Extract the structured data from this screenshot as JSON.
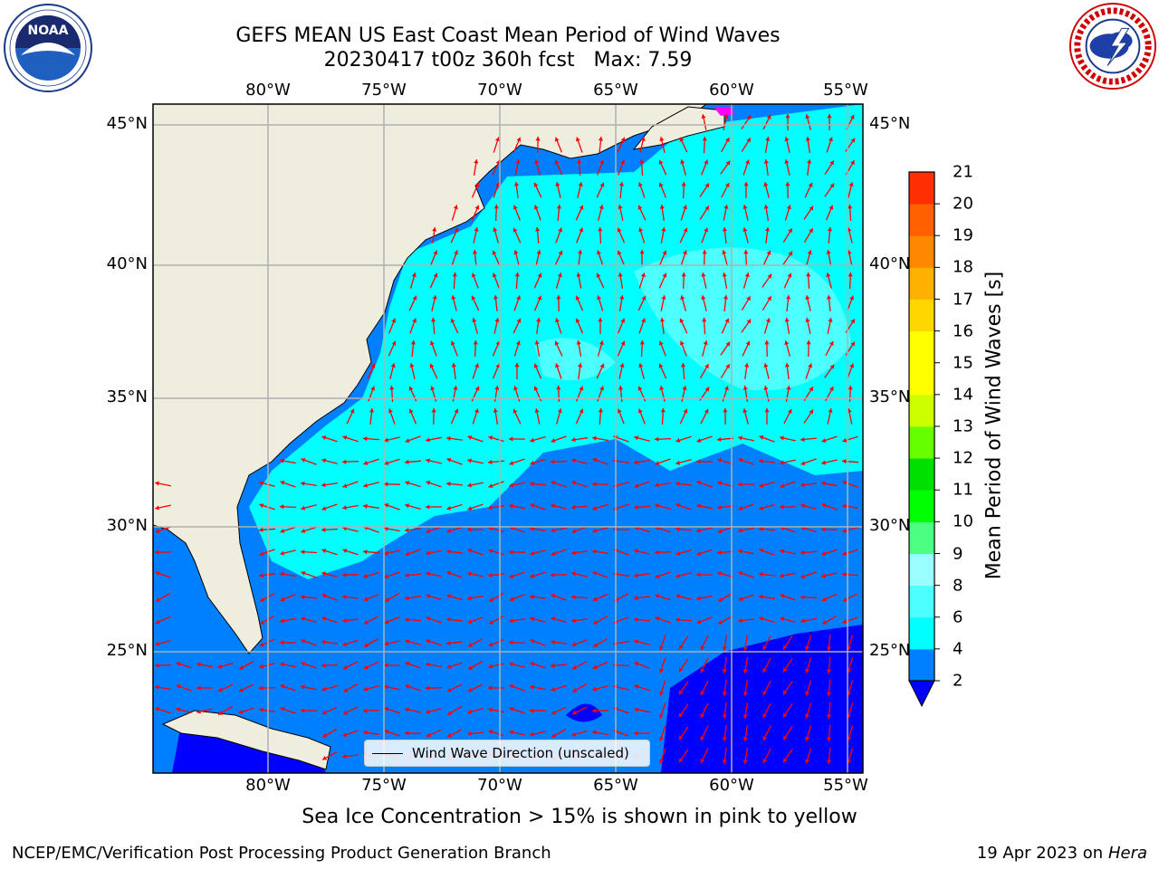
{
  "title": {
    "line1": "GEFS MEAN US East Coast Mean Period of Wind Waves",
    "line2": "20230417 t00z 360h fcst   Max: 7.59"
  },
  "logos": {
    "left": "noaa-logo",
    "right": "nws-logo"
  },
  "map": {
    "lon_ticks": [
      "80°W",
      "75°W",
      "70°W",
      "65°W",
      "60°W",
      "55°W"
    ],
    "lat_ticks": [
      "45°N",
      "40°N",
      "35°N",
      "30°N",
      "25°N"
    ],
    "legend_label": "Wind Wave Direction (unscaled)",
    "colors": {
      "land": "#efedde",
      "arrow": "#ff0000",
      "grid": "#b0b0b0"
    }
  },
  "colorbar": {
    "title": "Mean Period of Wind Waves [s]",
    "levels": [
      "2",
      "4",
      "6",
      "8",
      "9",
      "10",
      "11",
      "12",
      "13",
      "14",
      "15",
      "16",
      "17",
      "18",
      "19",
      "20",
      "21"
    ],
    "colors": [
      "#0080ff",
      "#00ffff",
      "#4dffff",
      "#99ffff",
      "#4dff80",
      "#00ff00",
      "#00e000",
      "#66ff00",
      "#ccff00",
      "#ffff00",
      "#ffff00",
      "#ffd700",
      "#ffb000",
      "#ff8800",
      "#ff6000",
      "#ff3000",
      "#ff0000"
    ],
    "under_color": "#0000ff"
  },
  "note": "Sea Ice Concentration > 15% is shown in pink to yellow",
  "footer": {
    "left": "NCEP/EMC/Verification Post Processing Product Generation Branch",
    "date": "19 Apr 2023 on ",
    "machine": "Hera"
  }
}
